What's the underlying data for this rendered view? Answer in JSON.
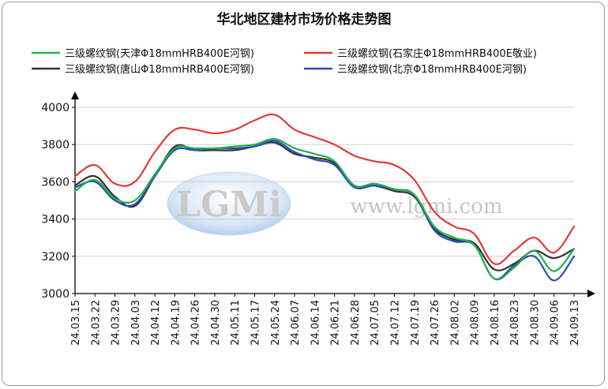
{
  "chart_data": {
    "type": "line",
    "title": "华北地区建材市场价格走势图",
    "xlabel": "",
    "ylabel": "",
    "ylim": [
      3000,
      4000
    ],
    "yticks": [
      3000,
      3200,
      3400,
      3600,
      3800,
      4000
    ],
    "grid": true,
    "legend_position": "top",
    "categories": [
      "24.03.15",
      "24.03.22",
      "24.03.29",
      "24.04.03",
      "24.04.12",
      "24.04.19",
      "24.04.26",
      "24.04.30",
      "24.05.11",
      "24.05.17",
      "24.05.24",
      "24.06.07",
      "24.06.14",
      "24.06.21",
      "24.06.28",
      "24.07.05",
      "24.07.12",
      "24.07.19",
      "24.07.26",
      "24.08.02",
      "24.08.09",
      "24.08.16",
      "24.08.23",
      "24.08.30",
      "24.09.06",
      "24.09.13"
    ],
    "series": [
      {
        "name": "三级螺纹钢(天津Φ18mmHRB400E河钢)",
        "color": "#22b14c",
        "values": [
          3550,
          3610,
          3510,
          3500,
          3640,
          3780,
          3780,
          3780,
          3790,
          3800,
          3830,
          3780,
          3750,
          3710,
          3580,
          3590,
          3560,
          3530,
          3360,
          3300,
          3260,
          3080,
          3140,
          3230,
          3120,
          3240
        ]
      },
      {
        "name": "三级螺纹钢(石家庄Φ18mmHRB400E敬业)",
        "color": "#e03b36",
        "values": [
          3630,
          3690,
          3590,
          3600,
          3760,
          3880,
          3880,
          3860,
          3880,
          3930,
          3960,
          3880,
          3840,
          3800,
          3740,
          3710,
          3690,
          3610,
          3440,
          3360,
          3320,
          3160,
          3230,
          3300,
          3220,
          3360
        ]
      },
      {
        "name": "三级螺纹钢(唐山Φ18mmHRB400E河钢)",
        "color": "#333333",
        "values": [
          3580,
          3630,
          3520,
          3470,
          3630,
          3790,
          3770,
          3770,
          3770,
          3790,
          3810,
          3750,
          3730,
          3700,
          3580,
          3580,
          3550,
          3520,
          3350,
          3290,
          3270,
          3130,
          3160,
          3230,
          3190,
          3240
        ]
      },
      {
        "name": "三级螺纹钢(北京Φ18mmHRB400E河钢)",
        "color": "#2a4db8",
        "values": [
          3570,
          3600,
          3500,
          3480,
          3630,
          3770,
          3770,
          3780,
          3780,
          3790,
          3820,
          3760,
          3720,
          3690,
          3570,
          3580,
          3560,
          3530,
          3340,
          3280,
          3260,
          3080,
          3150,
          3200,
          3070,
          3200
        ]
      }
    ]
  }
}
